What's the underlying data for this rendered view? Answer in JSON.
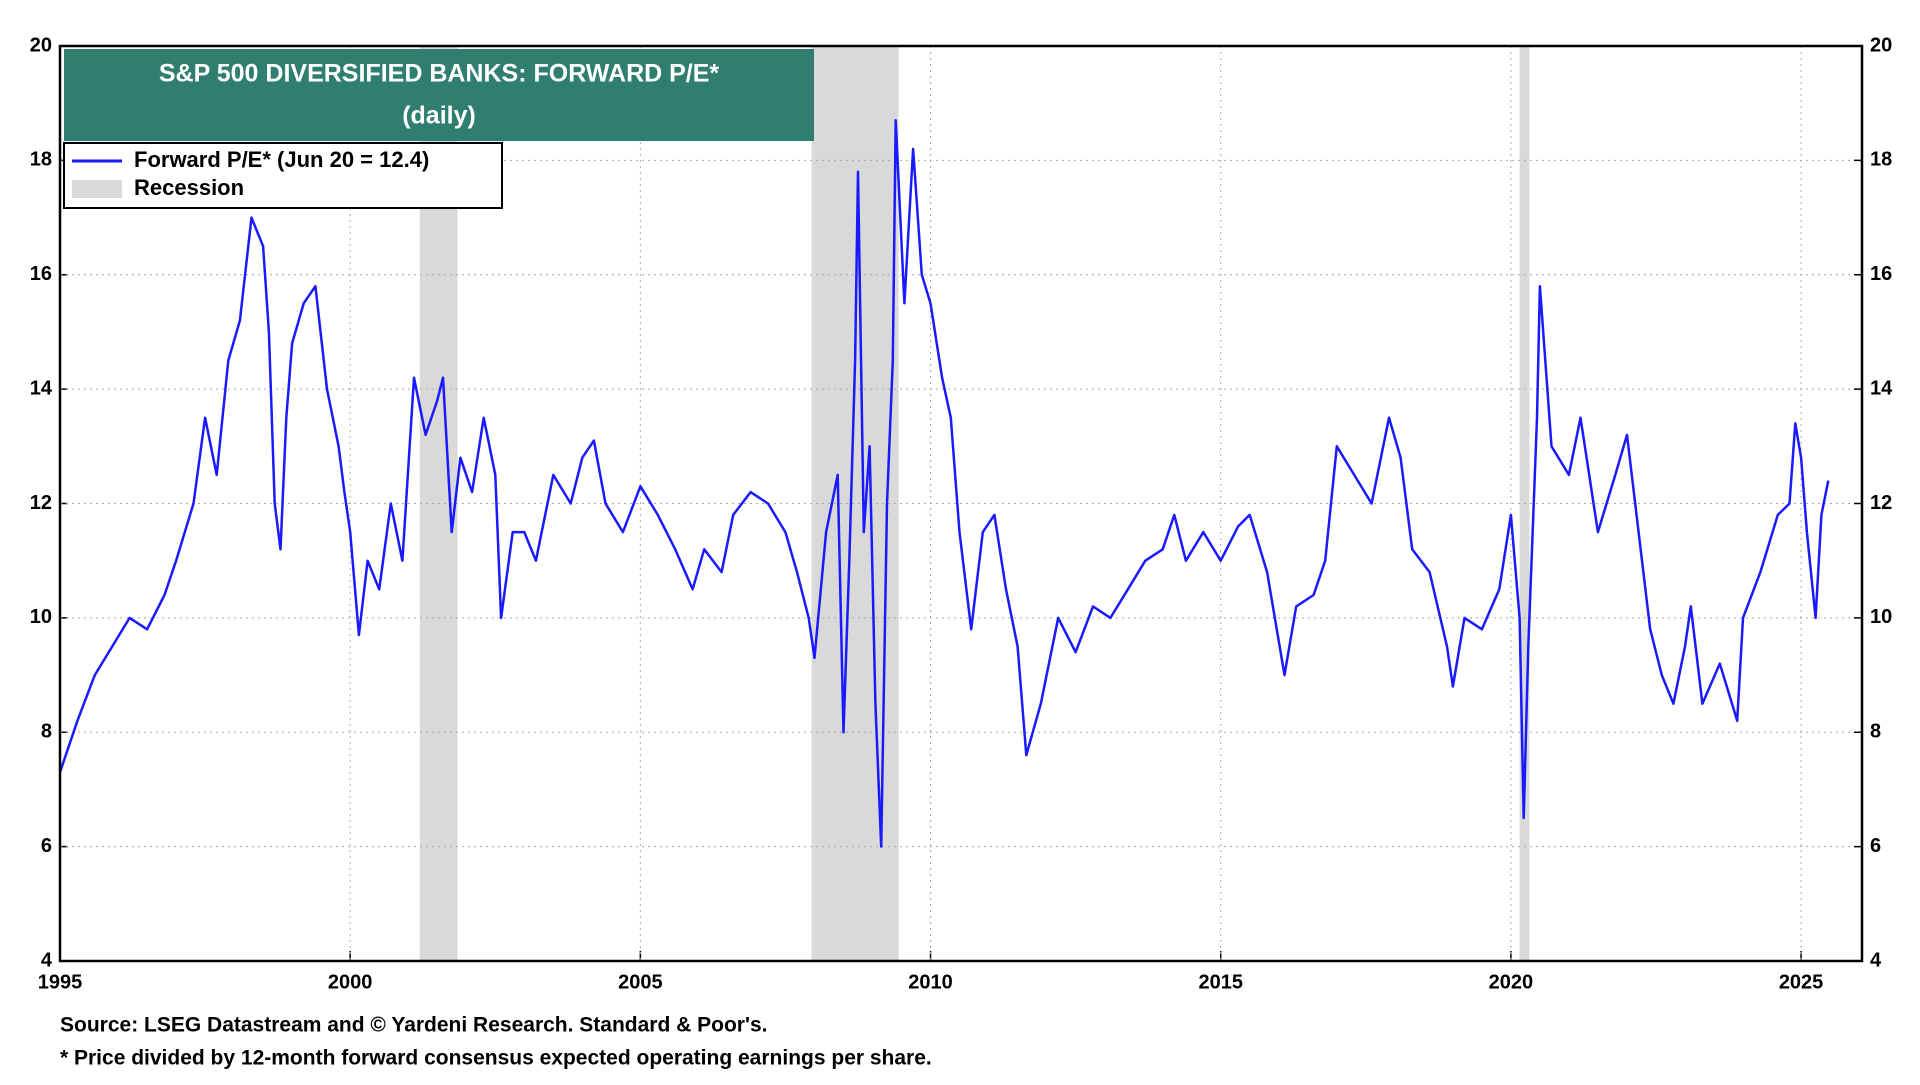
{
  "chart_data": {
    "type": "line",
    "title": "S&P 500 DIVERSIFIED BANKS: FORWARD P/E*",
    "subtitle": "(daily)",
    "source": "Source: LSEG Datastream and © Yardeni Research. Standard & Poor's.",
    "note": "* Price divided by 12-month forward consensus expected operating earnings per share.",
    "legend": "upper left",
    "grid": true,
    "xlim": [
      1995,
      2026.05
    ],
    "xticks": [
      1995,
      2000,
      2005,
      2010,
      2015,
      2020,
      2025
    ],
    "ylim": [
      4,
      20
    ],
    "yticks": [
      4,
      6,
      8,
      10,
      12,
      14,
      16,
      18,
      20
    ],
    "y2lim": [
      4,
      20
    ],
    "y2ticks": [
      4,
      6,
      8,
      10,
      12,
      14,
      16,
      18,
      20
    ],
    "recession_label": "Recession",
    "recession_color": "#d9d9d9",
    "recessions": [
      {
        "start": 2001.2,
        "end": 2001.85
      },
      {
        "start": 2007.95,
        "end": 2009.45
      },
      {
        "start": 2020.15,
        "end": 2020.32
      }
    ],
    "x": [
      1995.0,
      1995.3,
      1995.6,
      1995.9,
      1996.2,
      1996.5,
      1996.8,
      1997.0,
      1997.3,
      1997.5,
      1997.7,
      1997.9,
      1998.1,
      1998.3,
      1998.5,
      1998.6,
      1998.7,
      1998.8,
      1998.9,
      1999.0,
      1999.2,
      1999.4,
      1999.6,
      1999.8,
      1999.9,
      2000.0,
      2000.15,
      2000.3,
      2000.5,
      2000.7,
      2000.9,
      2001.1,
      2001.3,
      2001.5,
      2001.6,
      2001.75,
      2001.9,
      2002.1,
      2002.3,
      2002.5,
      2002.6,
      2002.8,
      2003.0,
      2003.2,
      2003.5,
      2003.8,
      2004.0,
      2004.2,
      2004.4,
      2004.7,
      2005.0,
      2005.3,
      2005.6,
      2005.9,
      2006.1,
      2006.4,
      2006.6,
      2006.9,
      2007.2,
      2007.5,
      2007.7,
      2007.9,
      2008.0,
      2008.2,
      2008.4,
      2008.5,
      2008.6,
      2008.7,
      2008.75,
      2008.85,
      2008.95,
      2009.05,
      2009.15,
      2009.25,
      2009.35,
      2009.4,
      2009.55,
      2009.7,
      2009.85,
      2010.0,
      2010.2,
      2010.35,
      2010.5,
      2010.7,
      2010.9,
      2011.1,
      2011.3,
      2011.5,
      2011.65,
      2011.9,
      2012.2,
      2012.5,
      2012.8,
      2013.1,
      2013.4,
      2013.7,
      2014.0,
      2014.2,
      2014.4,
      2014.7,
      2015.0,
      2015.3,
      2015.5,
      2015.8,
      2016.1,
      2016.3,
      2016.6,
      2016.8,
      2017.0,
      2017.3,
      2017.6,
      2017.9,
      2018.1,
      2018.3,
      2018.6,
      2018.9,
      2019.0,
      2019.2,
      2019.5,
      2019.8,
      2020.0,
      2020.15,
      2020.22,
      2020.3,
      2020.45,
      2020.5,
      2020.7,
      2021.0,
      2021.2,
      2021.5,
      2021.8,
      2022.0,
      2022.2,
      2022.4,
      2022.6,
      2022.8,
      2023.0,
      2023.1,
      2023.3,
      2023.6,
      2023.9,
      2024.0,
      2024.3,
      2024.6,
      2024.8,
      2024.9,
      2025.0,
      2025.1,
      2025.25,
      2025.35,
      2025.47
    ],
    "series": [
      {
        "name": "Forward P/E* (Jun 20 = 12.4)",
        "color": "#1a1aff",
        "values": [
          7.3,
          8.2,
          9.0,
          9.5,
          10.0,
          9.8,
          10.4,
          11.0,
          12.0,
          13.5,
          12.5,
          14.5,
          15.2,
          17.0,
          16.5,
          15.0,
          12.0,
          11.2,
          13.5,
          14.8,
          15.5,
          15.8,
          14.0,
          13.0,
          12.2,
          11.5,
          9.7,
          11.0,
          10.5,
          12.0,
          11.0,
          14.2,
          13.2,
          13.8,
          14.2,
          11.5,
          12.8,
          12.2,
          13.5,
          12.5,
          10.0,
          11.5,
          11.5,
          11.0,
          12.5,
          12.0,
          12.8,
          13.1,
          12.0,
          11.5,
          12.3,
          11.8,
          11.2,
          10.5,
          11.2,
          10.8,
          11.8,
          12.2,
          12.0,
          11.5,
          10.8,
          10.0,
          9.3,
          11.5,
          12.5,
          8.0,
          11.0,
          14.5,
          17.8,
          11.5,
          13.0,
          8.5,
          6.0,
          12.0,
          14.5,
          18.7,
          15.5,
          18.2,
          16.0,
          15.5,
          14.2,
          13.5,
          11.5,
          9.8,
          11.5,
          11.8,
          10.5,
          9.5,
          7.6,
          8.5,
          10.0,
          9.4,
          10.2,
          10.0,
          10.5,
          11.0,
          11.2,
          11.8,
          11.0,
          11.5,
          11.0,
          11.6,
          11.8,
          10.8,
          9.0,
          10.2,
          10.4,
          11.0,
          13.0,
          12.5,
          12.0,
          13.5,
          12.8,
          11.2,
          10.8,
          9.5,
          8.8,
          10.0,
          9.8,
          10.5,
          11.8,
          10.0,
          6.5,
          9.5,
          13.5,
          15.8,
          13.0,
          12.5,
          13.5,
          11.5,
          12.5,
          13.2,
          11.5,
          9.8,
          9.0,
          8.5,
          9.5,
          10.2,
          8.5,
          9.2,
          8.2,
          10.0,
          10.8,
          11.8,
          12.0,
          13.4,
          12.8,
          11.5,
          10.0,
          11.8,
          12.4
        ]
      }
    ]
  }
}
